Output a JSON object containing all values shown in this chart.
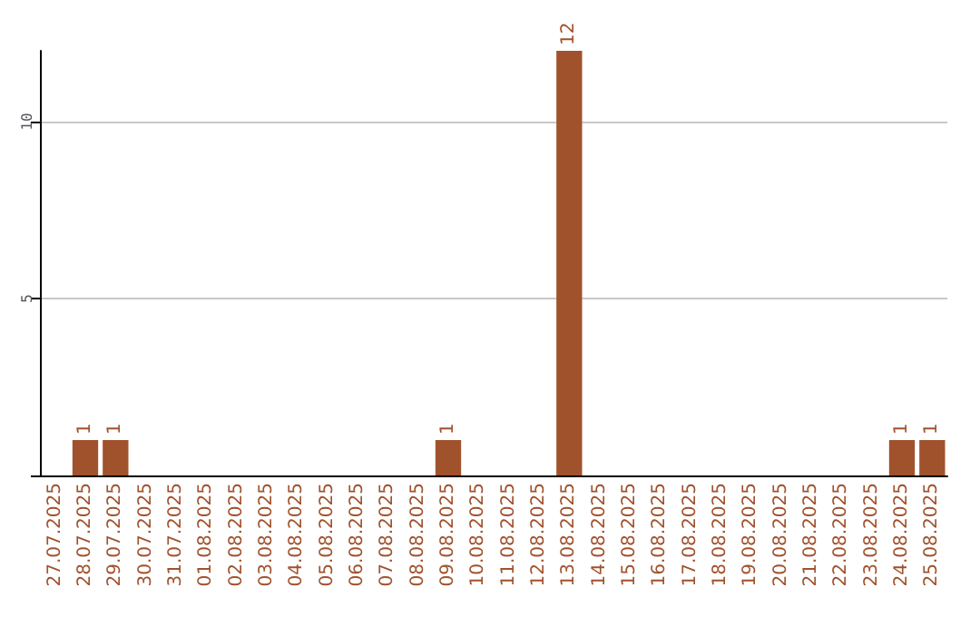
{
  "chart_data": {
    "type": "bar",
    "categories": [
      "27.07.2025",
      "28.07.2025",
      "29.07.2025",
      "30.07.2025",
      "31.07.2025",
      "01.08.2025",
      "02.08.2025",
      "03.08.2025",
      "04.08.2025",
      "05.08.2025",
      "06.08.2025",
      "07.08.2025",
      "08.08.2025",
      "09.08.2025",
      "10.08.2025",
      "11.08.2025",
      "12.08.2025",
      "13.08.2025",
      "14.08.2025",
      "15.08.2025",
      "16.08.2025",
      "17.08.2025",
      "18.08.2025",
      "19.08.2025",
      "20.08.2025",
      "21.08.2025",
      "22.08.2025",
      "23.08.2025",
      "24.08.2025",
      "25.08.2025"
    ],
    "values": [
      0,
      1,
      1,
      0,
      0,
      0,
      0,
      0,
      0,
      0,
      0,
      0,
      0,
      1,
      0,
      0,
      0,
      12,
      0,
      0,
      0,
      0,
      0,
      0,
      0,
      0,
      0,
      0,
      1,
      1
    ],
    "value_labels": [
      null,
      "1",
      "1",
      null,
      null,
      null,
      null,
      null,
      null,
      null,
      null,
      null,
      null,
      "1",
      null,
      null,
      null,
      "12",
      null,
      null,
      null,
      null,
      null,
      null,
      null,
      null,
      null,
      null,
      "1",
      "1"
    ],
    "color": "#a0522d",
    "ylim": [
      0,
      12
    ],
    "yticks": [
      {
        "value": 0,
        "label": null
      },
      5,
      10
    ],
    "grid": "y"
  }
}
